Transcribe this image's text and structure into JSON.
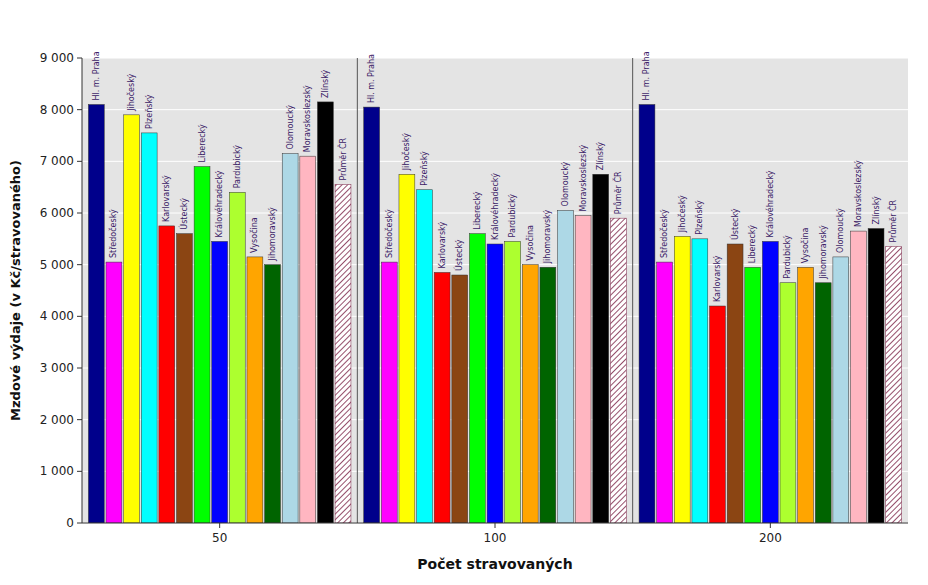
{
  "chart_data": {
    "type": "bar",
    "xlabel": "Počet stravovaných",
    "ylabel": "Mzdové výdaje (v Kč/stravovaného)",
    "categories": [
      "50",
      "100",
      "200"
    ],
    "series": [
      {
        "name": "Hl. m. Praha",
        "color": "#00008B",
        "values": [
          8100,
          8050,
          8100
        ]
      },
      {
        "name": "Středočeský",
        "color": "#FF00FF",
        "values": [
          5050,
          5050,
          5050
        ]
      },
      {
        "name": "Jihočeský",
        "color": "#FFFF00",
        "values": [
          7900,
          6750,
          5550
        ]
      },
      {
        "name": "Plzeňský",
        "color": "#00FFFF",
        "values": [
          7550,
          6450,
          5500
        ]
      },
      {
        "name": "Karlovarský",
        "color": "#FF0000",
        "values": [
          5750,
          4850,
          4200
        ]
      },
      {
        "name": "Ústecký",
        "color": "#8B4513",
        "values": [
          5600,
          4800,
          5400
        ]
      },
      {
        "name": "Liberecký",
        "color": "#00FF00",
        "values": [
          6900,
          5600,
          4950
        ]
      },
      {
        "name": "Královéhradecký",
        "color": "#0000FF",
        "values": [
          5450,
          5400,
          5450
        ]
      },
      {
        "name": "Pardubický",
        "color": "#ADFF2F",
        "values": [
          6400,
          5450,
          4650
        ]
      },
      {
        "name": "Vysočina",
        "color": "#FFA500",
        "values": [
          5150,
          5000,
          4950
        ]
      },
      {
        "name": "Jihomoravský",
        "color": "#006400",
        "values": [
          5000,
          4950,
          4650
        ]
      },
      {
        "name": "Olomoucký",
        "color": "#ADD8E6",
        "values": [
          7150,
          6050,
          5150
        ]
      },
      {
        "name": "Moravskoslezský",
        "color": "#FFB6C1",
        "values": [
          7100,
          5950,
          5650
        ]
      },
      {
        "name": "Zlínský",
        "color": "#000000",
        "values": [
          8150,
          6750,
          5700
        ]
      },
      {
        "name": "Průměr ČR",
        "color": "#7B2346",
        "values": [
          6550,
          5900,
          5350
        ]
      }
    ],
    "ylim": [
      0,
      9000
    ],
    "yticks": [
      0,
      {
        "value": 1000,
        "label": "1 000"
      },
      {
        "value": 2000,
        "label": "2 000"
      },
      {
        "value": 3000,
        "label": "3 000"
      },
      {
        "value": 4000,
        "label": "4 000"
      },
      {
        "value": 5000,
        "label": "5 000"
      },
      {
        "value": 6000,
        "label": "6 000"
      },
      {
        "value": 7000,
        "label": "7 000"
      },
      {
        "value": 8000,
        "label": "8 000"
      },
      {
        "value": 9000,
        "label": "9 000"
      }
    ],
    "grid": true
  }
}
